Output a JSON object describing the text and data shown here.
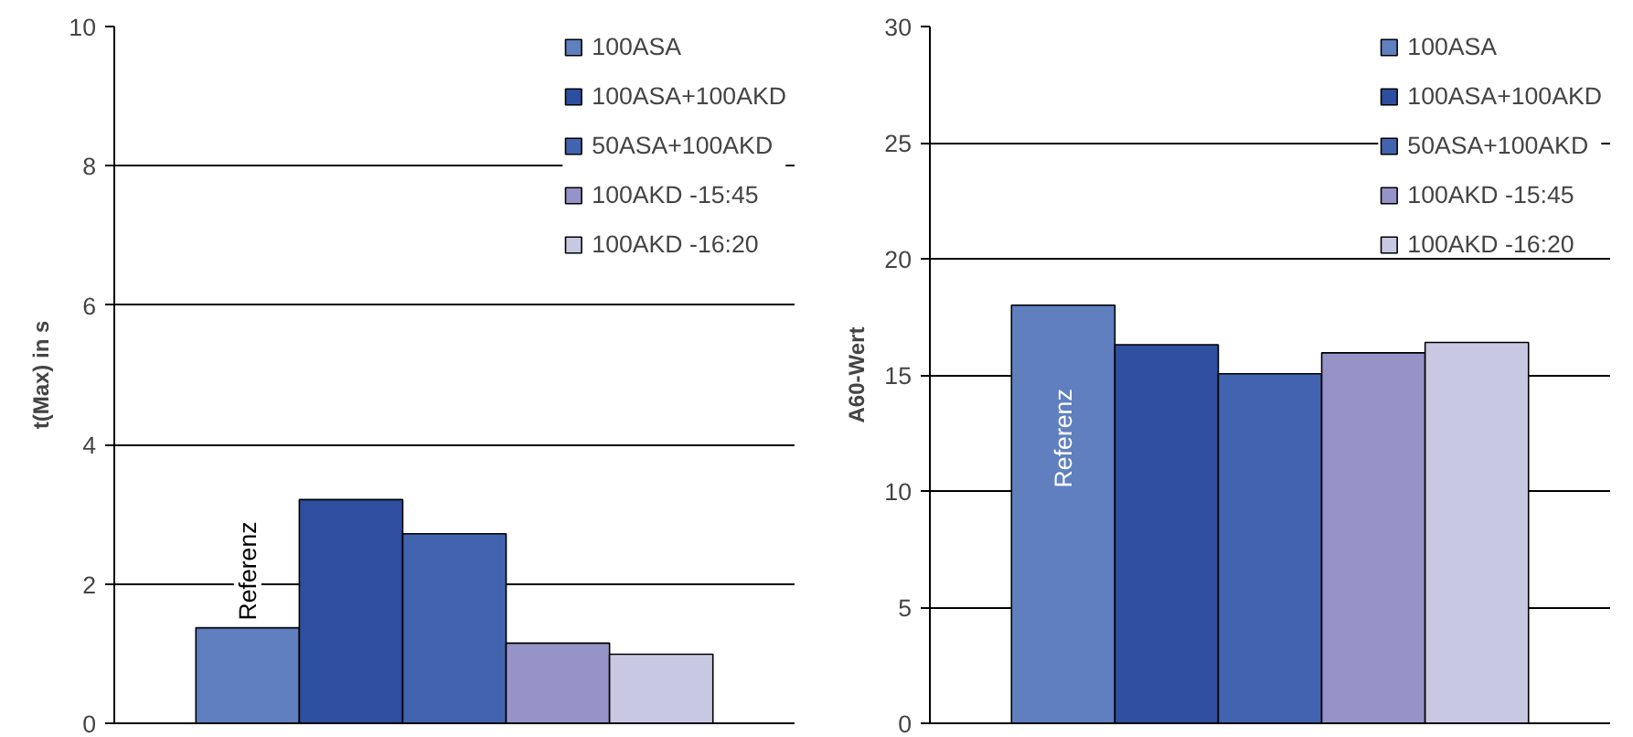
{
  "chart_data": [
    {
      "type": "bar",
      "ylabel": "t(Max) in s",
      "categories": [
        null
      ],
      "ylim": [
        0,
        10
      ],
      "yticks": [
        0,
        2,
        4,
        6,
        8,
        10
      ],
      "grid": "y",
      "legend": "top right",
      "tick_labels": "y",
      "annotations": [
        "Referenz"
      ],
      "series": [
        {
          "name": "100ASA",
          "color": "#5f7fbf",
          "values": [
            1.37
          ]
        },
        {
          "name": "100ASA+100AKD",
          "color": "#2e4fa0",
          "values": [
            3.21
          ]
        },
        {
          "name": "50ASA+100AKD",
          "color": "#4264b0",
          "values": [
            2.72
          ]
        },
        {
          "name": "100AKD -15:45",
          "color": "#9593c8",
          "values": [
            1.15
          ]
        },
        {
          "name": "100AKD -16:20",
          "color": "#c9c8e3",
          "values": [
            0.99
          ]
        }
      ]
    },
    {
      "type": "bar",
      "ylabel": "A60-Wert",
      "categories": [
        null
      ],
      "ylim": [
        0,
        30
      ],
      "yticks": [
        0,
        5,
        10,
        15,
        20,
        25,
        30
      ],
      "grid": "y",
      "legend": "top right",
      "tick_labels": "y",
      "annotations": [
        "Referenz"
      ],
      "series": [
        {
          "name": "100ASA",
          "color": "#5f7fbf",
          "values": [
            18.0
          ]
        },
        {
          "name": "100ASA+100AKD",
          "color": "#2e4fa0",
          "values": [
            16.3
          ]
        },
        {
          "name": "50ASA+100AKD",
          "color": "#4264b0",
          "values": [
            15.05
          ]
        },
        {
          "name": "100AKD -15:45",
          "color": "#9593c8",
          "values": [
            15.95
          ]
        },
        {
          "name": "100AKD -16:20",
          "color": "#c9c8e3",
          "values": [
            16.4
          ]
        }
      ]
    }
  ]
}
